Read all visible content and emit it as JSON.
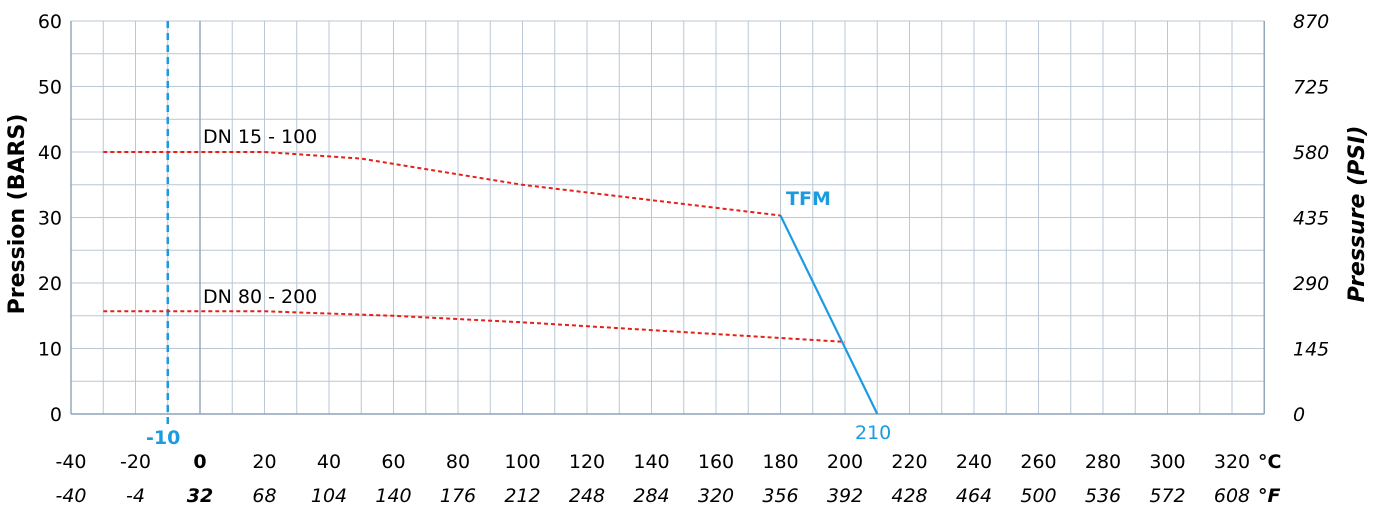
{
  "chart_data": {
    "type": "line",
    "xlabel": "°C",
    "xlabel_secondary": "°F",
    "ylabel": "Pression (BARS)",
    "ylabel_right": "Pressure (PSI)",
    "xlim": [
      -40,
      330
    ],
    "ylim": [
      0,
      60
    ],
    "grid": true,
    "x_ticks": [
      {
        "value": -40,
        "label": "-40",
        "f_label": "-40",
        "bold": false
      },
      {
        "value": -20,
        "label": "-20",
        "f_label": "-4",
        "bold": false
      },
      {
        "value": 0,
        "label": "0",
        "f_label": "32",
        "bold": true
      },
      {
        "value": 20,
        "label": "20",
        "f_label": "68",
        "bold": false
      },
      {
        "value": 40,
        "label": "40",
        "f_label": "104",
        "bold": false
      },
      {
        "value": 60,
        "label": "60",
        "f_label": "140",
        "bold": false
      },
      {
        "value": 80,
        "label": "80",
        "f_label": "176",
        "bold": false
      },
      {
        "value": 100,
        "label": "100",
        "f_label": "212",
        "bold": false
      },
      {
        "value": 120,
        "label": "120",
        "f_label": "248",
        "bold": false
      },
      {
        "value": 140,
        "label": "140",
        "f_label": "284",
        "bold": false
      },
      {
        "value": 160,
        "label": "160",
        "f_label": "320",
        "bold": false
      },
      {
        "value": 180,
        "label": "180",
        "f_label": "356",
        "bold": false
      },
      {
        "value": 200,
        "label": "200",
        "f_label": "392",
        "bold": false
      },
      {
        "value": 220,
        "label": "220",
        "f_label": "428",
        "bold": false
      },
      {
        "value": 240,
        "label": "240",
        "f_label": "464",
        "bold": false
      },
      {
        "value": 260,
        "label": "260",
        "f_label": "500",
        "bold": false
      },
      {
        "value": 280,
        "label": "280",
        "f_label": "536",
        "bold": false
      },
      {
        "value": 300,
        "label": "300",
        "f_label": "572",
        "bold": false
      },
      {
        "value": 320,
        "label": "320",
        "f_label": "608",
        "bold": false
      }
    ],
    "y_ticks": [
      {
        "value": 0,
        "label": "0",
        "psi": "0"
      },
      {
        "value": 10,
        "label": "10",
        "psi": "145"
      },
      {
        "value": 20,
        "label": "20",
        "psi": "290"
      },
      {
        "value": 30,
        "label": "30",
        "psi": "435"
      },
      {
        "value": 40,
        "label": "40",
        "psi": "580"
      },
      {
        "value": 50,
        "label": "50",
        "psi": "725"
      },
      {
        "value": 60,
        "label": "60",
        "psi": "870"
      }
    ],
    "series": [
      {
        "name": "DN 15 - 100",
        "color": "#e32119",
        "style": "dashed",
        "points": [
          [
            -30,
            40
          ],
          [
            20,
            40
          ],
          [
            50,
            39
          ],
          [
            100,
            35
          ],
          [
            180,
            30.3
          ]
        ]
      },
      {
        "name": "DN 80 - 200",
        "color": "#e32119",
        "style": "dashed",
        "points": [
          [
            -30,
            15.7
          ],
          [
            20,
            15.7
          ],
          [
            60,
            15
          ],
          [
            100,
            14
          ],
          [
            200,
            11
          ]
        ]
      },
      {
        "name": "TFM",
        "color": "#1b9be0",
        "style": "solid",
        "points": [
          [
            180,
            30.3
          ],
          [
            210,
            0
          ]
        ]
      }
    ],
    "annotations": {
      "series_label_1": "DN 15 - 100",
      "series_label_2": "DN 80 - 200",
      "material_label": "TFM",
      "min_temp_value": -10,
      "min_temp_label": "-10",
      "max_temp_label": "210"
    },
    "colors": {
      "limit_line": "#e32119",
      "material": "#1b9be0",
      "grid": "#b9c7d6"
    }
  }
}
